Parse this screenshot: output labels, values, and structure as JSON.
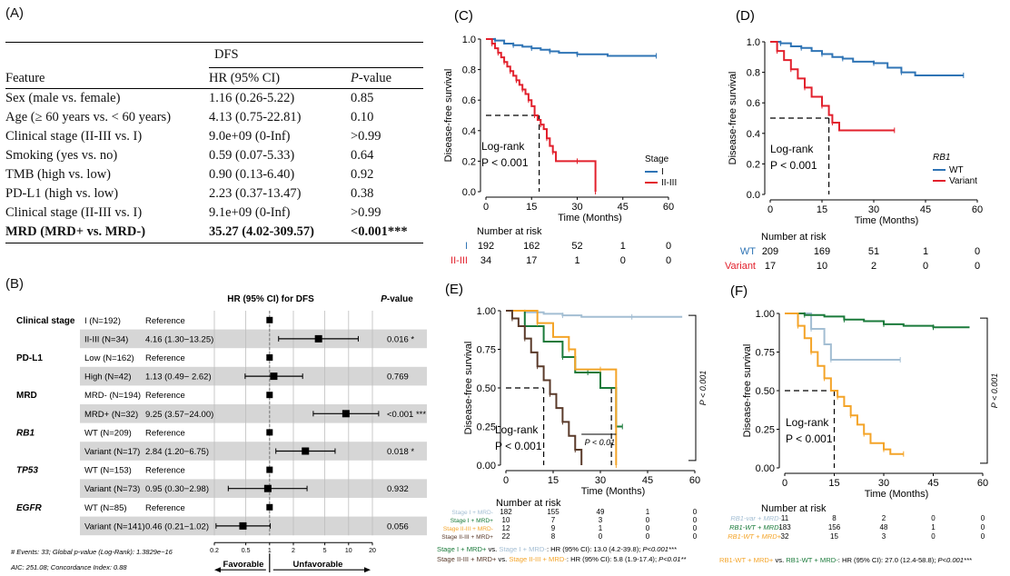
{
  "panelA": {
    "label": "(A)",
    "group_header": "DFS",
    "columns": [
      "Feature",
      "HR (95% CI)",
      "P",
      "-value"
    ],
    "rows": [
      {
        "feature": "Sex (male vs. female)",
        "hr": "1.16 (0.26-5.22)",
        "p": "0.85"
      },
      {
        "feature": "Age (≥ 60 years vs. < 60 years)",
        "hr": "4.13 (0.75-22.81)",
        "p": "0.10"
      },
      {
        "feature": "Clinical stage (II-III vs. I)",
        "hr": "9.0e+09 (0-Inf)",
        "p": ">0.99"
      },
      {
        "feature": "Smoking (yes vs. no)",
        "hr": "0.59 (0.07-5.33)",
        "p": "0.64"
      },
      {
        "feature": "TMB (high vs. low)",
        "hr": "0.90 (0.13-6.40)",
        "p": "0.92"
      },
      {
        "feature": "PD-L1 (high vs. low)",
        "hr": "2.23 (0.37-13.47)",
        "p": "0.38"
      },
      {
        "feature": "Clinical stage (II-III vs. I)",
        "hr": "9.1e+09 (0-Inf)",
        "p": ">0.99"
      },
      {
        "feature": "MRD (MRD+ vs. MRD-)",
        "hr": "35.27 (4.02-309.57)",
        "p": "<0.001***",
        "bold": true
      }
    ]
  },
  "panelB": {
    "label": "(B)",
    "title": "HR (95% CI) for DFS",
    "pvalue_header": "P",
    "pvalue_header_suffix": "-value",
    "rows": [
      {
        "group": "Clinical stage",
        "level": "I (N=192)",
        "ref": "Reference",
        "hr": 1,
        "lo": 1,
        "hi": 1,
        "p": "",
        "shade": false
      },
      {
        "group": "",
        "level": "II-III (N=34)",
        "ref": "4.16 (1.30−13.25)",
        "hr": 4.16,
        "lo": 1.3,
        "hi": 13.25,
        "p": "0.016 *",
        "shade": true
      },
      {
        "group": "PD-L1",
        "level": "Low (N=162)",
        "ref": "Reference",
        "hr": 1,
        "lo": 1,
        "hi": 1,
        "p": "",
        "shade": false
      },
      {
        "group": "",
        "level": "High (N=42)",
        "ref": "1.13 (0.49− 2.62)",
        "hr": 1.13,
        "lo": 0.49,
        "hi": 2.62,
        "p": "0.769",
        "shade": true
      },
      {
        "group": "MRD",
        "level": "MRD- (N=194)",
        "ref": "Reference",
        "hr": 1,
        "lo": 1,
        "hi": 1,
        "p": "",
        "shade": false
      },
      {
        "group": "",
        "level": "MRD+ (N=32)",
        "ref": "9.25 (3.57−24.00)",
        "hr": 9.25,
        "lo": 3.57,
        "hi": 24.0,
        "p": "<0.001 ***",
        "shade": true
      },
      {
        "group": "RB1",
        "level": "WT (N=209)",
        "ref": "Reference",
        "hr": 1,
        "lo": 1,
        "hi": 1,
        "p": "",
        "shade": false,
        "italic": true
      },
      {
        "group": "",
        "level": "Variant (N=17)",
        "ref": "2.84 (1.20−6.75)",
        "hr": 2.84,
        "lo": 1.2,
        "hi": 6.75,
        "p": "0.018 *",
        "shade": true
      },
      {
        "group": "TP53",
        "level": "WT (N=153)",
        "ref": "Reference",
        "hr": 1,
        "lo": 1,
        "hi": 1,
        "p": "",
        "shade": false,
        "italic": true
      },
      {
        "group": "",
        "level": "Variant (N=73)",
        "ref": "0.95 (0.30−2.98)",
        "hr": 0.95,
        "lo": 0.3,
        "hi": 2.98,
        "p": "0.932",
        "shade": true
      },
      {
        "group": "EGFR",
        "level": "WT (N=85)",
        "ref": "Reference",
        "hr": 1,
        "lo": 1,
        "hi": 1,
        "p": "",
        "shade": false,
        "italic": true
      },
      {
        "group": "",
        "level": "Variant (N=141)",
        "ref": "0.46 (0.21−1.02)",
        "hr": 0.46,
        "lo": 0.21,
        "hi": 1.02,
        "p": "0.056",
        "shade": true
      }
    ],
    "ticks": [
      "0.2",
      "0.5",
      "1",
      "2",
      "5",
      "10",
      "20"
    ],
    "footnote1": "# Events: 33; Global p-value (Log-Rank): 1.3829e−16",
    "footnote2": "AIC: 251.08; Concordance Index: 0.88",
    "favorable": "Favorable",
    "unfavorable": "Unfavorable"
  },
  "chart_data": [
    {
      "panel": "(C)",
      "type": "line",
      "xlabel": "Time (Months)",
      "ylabel": "Disease-free survival",
      "xlim": [
        0,
        60
      ],
      "ylim": [
        0,
        1
      ],
      "xticks": [
        "0",
        "15",
        "30",
        "45",
        "60"
      ],
      "yticks": [
        "0.0",
        "0.2",
        "0.4",
        "0.6",
        "0.8",
        "1.0"
      ],
      "annotation": "Log-rank",
      "pvalue": "P < 0.001",
      "legend_title": "Stage",
      "series": [
        {
          "name": "I",
          "color": "#2f74b5",
          "points": [
            [
              0,
              1
            ],
            [
              3,
              0.99
            ],
            [
              6,
              0.97
            ],
            [
              9,
              0.96
            ],
            [
              12,
              0.95
            ],
            [
              15,
              0.94
            ],
            [
              18,
              0.93
            ],
            [
              21,
              0.92
            ],
            [
              24,
              0.91
            ],
            [
              30,
              0.9
            ],
            [
              40,
              0.89
            ],
            [
              56,
              0.89
            ]
          ]
        },
        {
          "name": "II-III",
          "color": "#e2202c",
          "points": [
            [
              0,
              1
            ],
            [
              2,
              0.97
            ],
            [
              3,
              0.94
            ],
            [
              4,
              0.91
            ],
            [
              5,
              0.88
            ],
            [
              6,
              0.85
            ],
            [
              7,
              0.82
            ],
            [
              8,
              0.79
            ],
            [
              9,
              0.76
            ],
            [
              10,
              0.73
            ],
            [
              11,
              0.7
            ],
            [
              12,
              0.67
            ],
            [
              13,
              0.64
            ],
            [
              14,
              0.6
            ],
            [
              15,
              0.56
            ],
            [
              16,
              0.5
            ],
            [
              17,
              0.47
            ],
            [
              18,
              0.44
            ],
            [
              19,
              0.41
            ],
            [
              20,
              0.35
            ],
            [
              21,
              0.3
            ],
            [
              22,
              0.26
            ],
            [
              23,
              0.2
            ],
            [
              30,
              0.2
            ],
            [
              36,
              0.2
            ],
            [
              36,
              0
            ]
          ]
        }
      ],
      "risk_title": "Number at risk",
      "risk_rows": [
        {
          "label": "I",
          "color": "#2f74b5",
          "values": [
            "192",
            "162",
            "52",
            "1",
            "0"
          ]
        },
        {
          "label": "II-III",
          "color": "#e2202c",
          "values": [
            "34",
            "17",
            "1",
            "0",
            "0"
          ]
        }
      ]
    },
    {
      "panel": "(D)",
      "type": "line",
      "xlabel": "Time (Months)",
      "ylabel": "Disease-free survival",
      "xlim": [
        0,
        60
      ],
      "ylim": [
        0,
        1
      ],
      "xticks": [
        "0",
        "15",
        "30",
        "45",
        "60"
      ],
      "yticks": [
        "0.0",
        "0.2",
        "0.4",
        "0.6",
        "0.8",
        "1.0"
      ],
      "annotation": "Log-rank",
      "pvalue": "P < 0.001",
      "legend_title": "RB1",
      "series": [
        {
          "name": "WT",
          "color": "#2f74b5",
          "points": [
            [
              0,
              1
            ],
            [
              3,
              0.99
            ],
            [
              6,
              0.97
            ],
            [
              9,
              0.96
            ],
            [
              12,
              0.94
            ],
            [
              15,
              0.92
            ],
            [
              18,
              0.9
            ],
            [
              21,
              0.89
            ],
            [
              24,
              0.87
            ],
            [
              30,
              0.86
            ],
            [
              34,
              0.83
            ],
            [
              38,
              0.8
            ],
            [
              42,
              0.78
            ],
            [
              56,
              0.78
            ]
          ]
        },
        {
          "name": "Variant",
          "color": "#e2202c",
          "points": [
            [
              0,
              1
            ],
            [
              2,
              0.94
            ],
            [
              4,
              0.88
            ],
            [
              6,
              0.82
            ],
            [
              8,
              0.76
            ],
            [
              10,
              0.7
            ],
            [
              12,
              0.64
            ],
            [
              15,
              0.58
            ],
            [
              17,
              0.52
            ],
            [
              18,
              0.47
            ],
            [
              20,
              0.42
            ],
            [
              36,
              0.42
            ]
          ]
        }
      ],
      "risk_title": "Number at risk",
      "risk_rows": [
        {
          "label": "WT",
          "color": "#2f74b5",
          "values": [
            "209",
            "169",
            "51",
            "1",
            "0"
          ]
        },
        {
          "label": "Variant",
          "color": "#e2202c",
          "values": [
            "17",
            "10",
            "2",
            "0",
            "0"
          ]
        }
      ]
    },
    {
      "panel": "(E)",
      "type": "line",
      "xlabel": "Time (Months)",
      "ylabel": "Disease-free survival",
      "xlim": [
        0,
        60
      ],
      "ylim": [
        0,
        1
      ],
      "xticks": [
        "0",
        "15",
        "30",
        "45",
        "60"
      ],
      "yticks": [
        "0.00",
        "0.25",
        "0.50",
        "0.75",
        "1.00"
      ],
      "annotation": "Log-rank",
      "pvalue": "P < 0.001",
      "p_bracket": "P < 0.001",
      "p_small": "P < 0.01",
      "series": [
        {
          "name": "Stage I + MRD-",
          "color": "#a3bed3",
          "points": [
            [
              0,
              1
            ],
            [
              6,
              0.99
            ],
            [
              12,
              0.98
            ],
            [
              18,
              0.97
            ],
            [
              24,
              0.96
            ],
            [
              40,
              0.96
            ],
            [
              56,
              0.96
            ]
          ]
        },
        {
          "name": "Stage I + MRD+",
          "color": "#1a7a3a",
          "points": [
            [
              0,
              1
            ],
            [
              6,
              0.9
            ],
            [
              12,
              0.8
            ],
            [
              18,
              0.7
            ],
            [
              22,
              0.6
            ],
            [
              26,
              0.6
            ],
            [
              30,
              0.5
            ],
            [
              35,
              0.5
            ],
            [
              35,
              0.25
            ],
            [
              37,
              0.25
            ]
          ]
        },
        {
          "name": "Stage II-III + MRD-",
          "color": "#f4a428",
          "points": [
            [
              0,
              1
            ],
            [
              10,
              0.92
            ],
            [
              15,
              0.83
            ],
            [
              20,
              0.75
            ],
            [
              22,
              0.62
            ],
            [
              30,
              0.62
            ],
            [
              35,
              0.62
            ],
            [
              35,
              0
            ]
          ]
        },
        {
          "name": "Stage II-III + MRD+",
          "color": "#5a3a2a",
          "points": [
            [
              0,
              1
            ],
            [
              2,
              0.95
            ],
            [
              4,
              0.9
            ],
            [
              6,
              0.82
            ],
            [
              8,
              0.73
            ],
            [
              10,
              0.64
            ],
            [
              12,
              0.55
            ],
            [
              14,
              0.46
            ],
            [
              16,
              0.37
            ],
            [
              18,
              0.28
            ],
            [
              20,
              0.19
            ],
            [
              22,
              0.1
            ],
            [
              24,
              0
            ]
          ]
        }
      ],
      "risk_title": "Number at risk",
      "risk_rows": [
        {
          "label": "Stage I + MRD-",
          "color": "#a3bed3",
          "values": [
            "182",
            "155",
            "49",
            "1",
            "0"
          ]
        },
        {
          "label": "Stage I + MRD+",
          "color": "#1a7a3a",
          "values": [
            "10",
            "7",
            "3",
            "0",
            "0"
          ]
        },
        {
          "label": "Stage II-III + MRD-",
          "color": "#f4a428",
          "values": [
            "12",
            "9",
            "1",
            "0",
            "0"
          ]
        },
        {
          "label": "Stage II-III + MRD+",
          "color": "#5a3a2a",
          "values": [
            "22",
            "8",
            "0",
            "0",
            "0"
          ]
        }
      ],
      "notes": [
        {
          "a": "Stage I + MRD+",
          "a_color": "#1a7a3a",
          "vs": " vs. ",
          "b": "Stage I + MRD-",
          "b_color": "#a3bed3",
          "rest": ": HR (95% CI): 13.0 (4.2-39.8); ",
          "p": "P<0.001***"
        },
        {
          "a": "Stage II-III + MRD+",
          "a_color": "#5a3a2a",
          "vs": " vs. ",
          "b": "Stage II-III + MRD-",
          "b_color": "#f4a428",
          "rest": ": HR (95% CI): 5.8 (1.9-17.4); ",
          "p": "P<0.01**"
        }
      ]
    },
    {
      "panel": "(F)",
      "type": "line",
      "xlabel": "Time (Months)",
      "ylabel": "Disease-free survival",
      "xlim": [
        0,
        60
      ],
      "ylim": [
        0,
        1
      ],
      "xticks": [
        "0",
        "15",
        "30",
        "45",
        "60"
      ],
      "yticks": [
        "0.00",
        "0.25",
        "0.50",
        "0.75",
        "1.00"
      ],
      "annotation": "Log-rank",
      "pvalue": "P < 0.001",
      "p_bracket": "P < 0.001",
      "series": [
        {
          "name": "RB1-var + MRD-",
          "color": "#a3bed3",
          "points": [
            [
              0,
              1
            ],
            [
              8,
              0.9
            ],
            [
              12,
              0.8
            ],
            [
              14,
              0.7
            ],
            [
              20,
              0.7
            ],
            [
              35,
              0.7
            ]
          ]
        },
        {
          "name": "RB1-WT + MRD-",
          "color": "#1a7a3a",
          "points": [
            [
              0,
              1
            ],
            [
              6,
              0.99
            ],
            [
              12,
              0.98
            ],
            [
              18,
              0.96
            ],
            [
              24,
              0.95
            ],
            [
              30,
              0.93
            ],
            [
              36,
              0.92
            ],
            [
              45,
              0.91
            ],
            [
              56,
              0.91
            ]
          ]
        },
        {
          "name": "RB1-WT + MRD+",
          "color": "#f4a428",
          "points": [
            [
              0,
              1
            ],
            [
              4,
              0.92
            ],
            [
              6,
              0.84
            ],
            [
              8,
              0.75
            ],
            [
              10,
              0.66
            ],
            [
              12,
              0.58
            ],
            [
              14,
              0.5
            ],
            [
              16,
              0.46
            ],
            [
              18,
              0.4
            ],
            [
              20,
              0.34
            ],
            [
              22,
              0.28
            ],
            [
              24,
              0.22
            ],
            [
              26,
              0.16
            ],
            [
              30,
              0.12
            ],
            [
              32,
              0.09
            ],
            [
              36,
              0.09
            ]
          ]
        }
      ],
      "risk_title": "Number at risk",
      "risk_rows": [
        {
          "label": "RB1-var + MRD-",
          "color": "#a3bed3",
          "values": [
            "11",
            "8",
            "2",
            "0",
            "0"
          ]
        },
        {
          "label": "RB1-WT + MRD-",
          "color": "#1a7a3a",
          "values": [
            "183",
            "156",
            "48",
            "1",
            "0"
          ]
        },
        {
          "label": "RB1-WT + MRD+",
          "color": "#f4a428",
          "values": [
            "32",
            "15",
            "3",
            "0",
            "0"
          ]
        }
      ],
      "notes": [
        {
          "a": "RB1-WT + MRD+",
          "a_color": "#f4a428",
          "vs": " vs. ",
          "b": "RB1-WT + MRD-",
          "b_color": "#1a7a3a",
          "rest": ": HR (95% CI): 27.0 (12.4-58.8); ",
          "p": "P<0.001***"
        }
      ]
    }
  ]
}
